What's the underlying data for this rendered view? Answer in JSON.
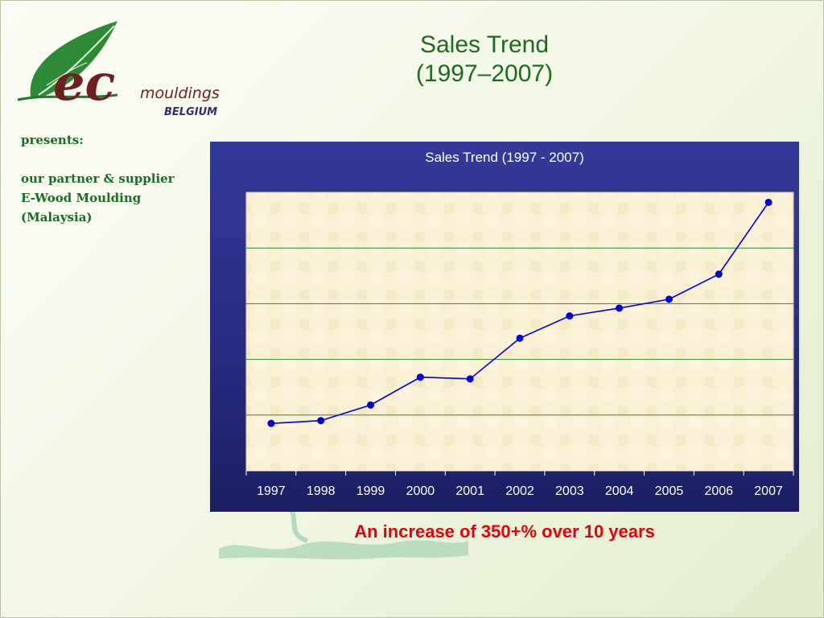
{
  "logo": {
    "brand": "ec",
    "brand_sub": "mouldings",
    "location": "BELGIUM"
  },
  "sidebar": {
    "presents": "presents:",
    "partner_lines": [
      "our partner & supplier",
      "E-Wood Moulding",
      "(Malaysia)"
    ]
  },
  "slide": {
    "title_line1": "Sales Trend",
    "title_line2": "(1997–2007)",
    "caption": "An increase of 350+% over 10 years"
  },
  "colors": {
    "title": "#1e6a1e",
    "caption": "#e8000b",
    "series": "#0000dd",
    "gridline": "#2e8b2e",
    "panel": "#272c84"
  },
  "chart_data": {
    "type": "line",
    "title": "Sales Trend (1997 - 2007)",
    "xlabel": "",
    "ylabel": "",
    "categories": [
      "1997",
      "1998",
      "1999",
      "2000",
      "2001",
      "2002",
      "2003",
      "2004",
      "2005",
      "2006",
      "2007"
    ],
    "series": [
      {
        "values": [
          0.85,
          0.9,
          1.18,
          1.68,
          1.65,
          2.38,
          2.78,
          2.92,
          3.08,
          3.53,
          4.82
        ]
      }
    ],
    "ylim": [
      0,
      5
    ],
    "y_tick_labels_shown": false,
    "grid": "horizontal",
    "legend": "none"
  }
}
